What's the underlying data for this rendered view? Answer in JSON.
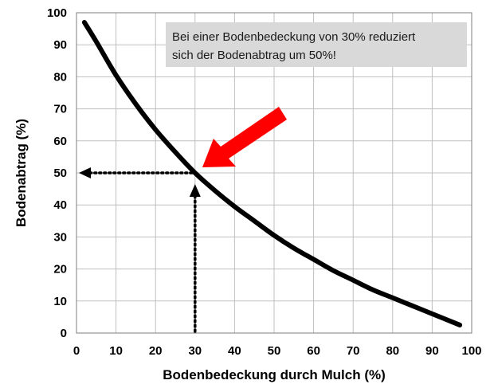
{
  "chart_data": {
    "type": "line",
    "xlabel": "Bodenbedeckung durch Mulch (%)",
    "ylabel": "Bodenabtrag (%)",
    "xlim": [
      0,
      100
    ],
    "ylim": [
      0,
      100
    ],
    "x_ticks": [
      0,
      10,
      20,
      30,
      40,
      50,
      60,
      70,
      80,
      90,
      100
    ],
    "y_ticks": [
      0,
      10,
      20,
      30,
      40,
      50,
      60,
      70,
      80,
      90,
      100
    ],
    "grid": true,
    "series": [
      {
        "x": [
          2,
          5,
          10,
          15,
          20,
          25,
          30,
          35,
          40,
          45,
          50,
          55,
          60,
          65,
          70,
          75,
          80,
          85,
          90,
          97
        ],
        "y": [
          97,
          91,
          80.5,
          71.5,
          63.5,
          56.5,
          50,
          44.5,
          39.5,
          35,
          30.5,
          26.5,
          23,
          19.5,
          16.5,
          13.5,
          11,
          8.5,
          6,
          2.5
        ],
        "color": "#000000"
      }
    ],
    "highlight_point": {
      "x": 30,
      "y": 50
    },
    "annotation": {
      "text_line1": "Bei einer Bodenbedeckung von 30% reduziert",
      "text_line2": "sich der Bodenabtrag um 50%!"
    },
    "colors": {
      "grid": "#bfbfbf",
      "arrow": "#ff0000",
      "annotation_bg": "#d9d9d9",
      "curve": "#000000"
    }
  }
}
